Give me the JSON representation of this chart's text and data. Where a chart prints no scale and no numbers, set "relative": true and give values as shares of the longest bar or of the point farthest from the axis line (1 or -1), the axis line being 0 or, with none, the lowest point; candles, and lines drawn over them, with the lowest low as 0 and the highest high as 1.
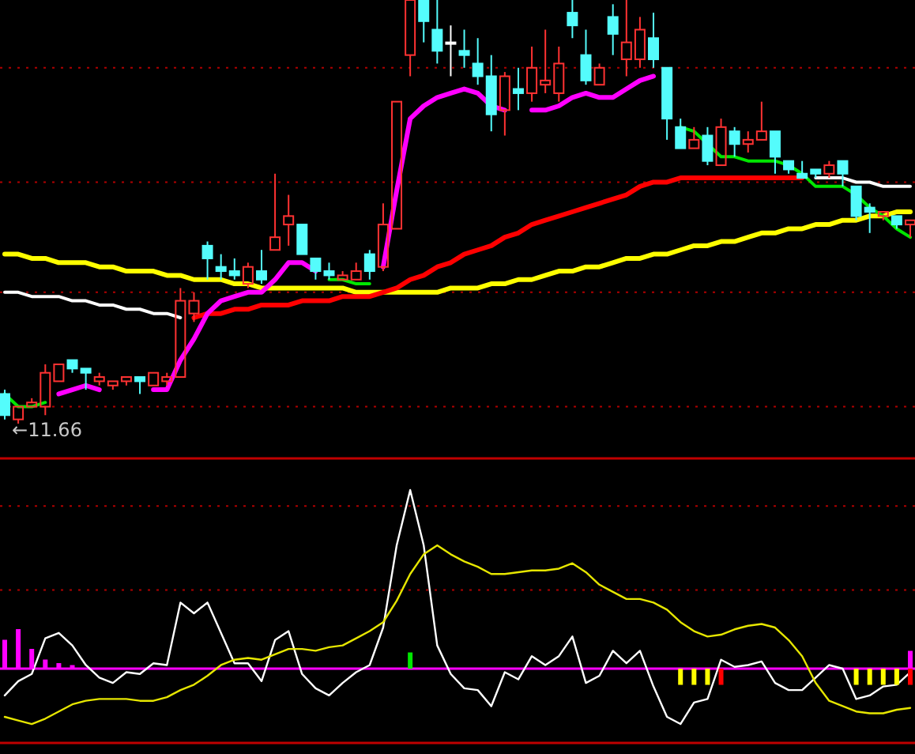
{
  "chart_data": [
    {
      "type": "candlestick",
      "relative": true,
      "ref_lines": [
        {
          "axis": "y",
          "value": 0.84,
          "color": "#b00000",
          "line_style": "dotted"
        },
        {
          "axis": "y",
          "value": 0.57,
          "color": "#b00000",
          "line_style": "dotted"
        },
        {
          "axis": "y",
          "value": 0.31,
          "color": "#b00000",
          "line_style": "dotted"
        },
        {
          "axis": "y",
          "value": 0.04,
          "color": "#b00000",
          "line_style": "dotted"
        }
      ],
      "categories": [
        null,
        null,
        null,
        null,
        null,
        null,
        null,
        null,
        null,
        null,
        null,
        null,
        null,
        null,
        null,
        null,
        null,
        null,
        null,
        null,
        null,
        null,
        null,
        null,
        null,
        null,
        null,
        null,
        null,
        null,
        null,
        null,
        null,
        null,
        null,
        null,
        null,
        null,
        null,
        null,
        null,
        null,
        null,
        null,
        null,
        null,
        null,
        null,
        null,
        null,
        null,
        null,
        null,
        null,
        null,
        null,
        null,
        null,
        null,
        null,
        null,
        null,
        null,
        null,
        null,
        null,
        null,
        null
      ],
      "ohlc": [
        [
          0.07,
          0.08,
          0.01,
          0.02
        ],
        [
          0.01,
          0.04,
          0,
          0.04
        ],
        [
          0.04,
          0.06,
          0.04,
          0.05
        ],
        [
          0.04,
          0.14,
          0.02,
          0.12
        ],
        [
          0.1,
          0.14,
          0.1,
          0.14
        ],
        [
          0.15,
          0.15,
          0.12,
          0.13
        ],
        [
          0.13,
          0.13,
          0.08,
          0.12
        ],
        [
          0.1,
          0.12,
          0.09,
          0.11
        ],
        [
          0.09,
          0.1,
          0.08,
          0.1
        ],
        [
          0.1,
          0.11,
          0.09,
          0.11
        ],
        [
          0.11,
          0.11,
          0.07,
          0.1
        ],
        [
          0.09,
          0.12,
          0.09,
          0.12
        ],
        [
          0.1,
          0.12,
          0.09,
          0.11
        ],
        [
          0.11,
          0.32,
          0.11,
          0.29
        ],
        [
          0.26,
          0.31,
          0.24,
          0.29
        ],
        [
          0.42,
          0.43,
          0.34,
          0.39
        ],
        [
          0.37,
          0.4,
          0.34,
          0.36
        ],
        [
          0.36,
          0.39,
          0.34,
          0.35
        ],
        [
          0.33,
          0.38,
          0.32,
          0.37
        ],
        [
          0.36,
          0.41,
          0.33,
          0.34
        ],
        [
          0.41,
          0.59,
          0.41,
          0.44
        ],
        [
          0.47,
          0.54,
          0.42,
          0.49
        ],
        [
          0.47,
          0.47,
          0.4,
          0.4
        ],
        [
          0.39,
          0.39,
          0.34,
          0.36
        ],
        [
          0.36,
          0.38,
          0.34,
          0.35
        ],
        [
          0.34,
          0.36,
          0.34,
          0.35
        ],
        [
          0.34,
          0.38,
          0.34,
          0.36
        ],
        [
          0.4,
          0.41,
          0.34,
          0.36
        ],
        [
          0.37,
          0.52,
          0.36,
          0.47
        ],
        [
          0.46,
          0.76,
          0.46,
          0.76
        ],
        [
          0.87,
          1,
          0.82,
          1
        ],
        [
          1,
          1,
          0.9,
          0.95
        ],
        [
          0.93,
          1,
          0.85,
          0.88
        ],
        [
          0.9,
          0.94,
          0.82,
          0.9
        ],
        [
          0.88,
          0.93,
          0.84,
          0.87
        ],
        [
          0.85,
          0.91,
          0.8,
          0.82
        ],
        [
          0.82,
          0.87,
          0.69,
          0.73
        ],
        [
          0.74,
          0.83,
          0.68,
          0.82
        ],
        [
          0.79,
          0.84,
          0.74,
          0.78
        ],
        [
          0.78,
          0.89,
          0.76,
          0.84
        ],
        [
          0.8,
          0.93,
          0.78,
          0.81
        ],
        [
          0.78,
          0.89,
          0.76,
          0.85
        ],
        [
          0.97,
          1,
          0.91,
          0.94
        ],
        [
          0.87,
          0.93,
          0.8,
          0.81
        ],
        [
          0.8,
          0.85,
          0.8,
          0.84
        ],
        [
          0.96,
          0.99,
          0.87,
          0.92
        ],
        [
          0.86,
          1,
          0.82,
          0.9
        ],
        [
          0.86,
          0.96,
          0.84,
          0.93
        ],
        [
          0.91,
          0.97,
          0.84,
          0.86
        ],
        [
          0.84,
          0.84,
          0.67,
          0.72
        ],
        [
          0.7,
          0.72,
          0.65,
          0.65
        ],
        [
          0.65,
          0.7,
          0.65,
          0.67
        ],
        [
          0.68,
          0.7,
          0.61,
          0.62
        ],
        [
          0.61,
          0.72,
          0.61,
          0.7
        ],
        [
          0.69,
          0.7,
          0.63,
          0.66
        ],
        [
          0.66,
          0.69,
          0.64,
          0.67
        ],
        [
          0.67,
          0.76,
          0.67,
          0.69
        ],
        [
          0.69,
          0.69,
          0.59,
          0.63
        ],
        [
          0.62,
          0.62,
          0.59,
          0.6
        ],
        [
          0.59,
          0.62,
          0.58,
          0.58
        ],
        [
          0.6,
          0.6,
          0.58,
          0.59
        ],
        [
          0.59,
          0.62,
          0.58,
          0.61
        ],
        [
          0.62,
          0.62,
          0.56,
          0.59
        ],
        [
          0.56,
          0.56,
          0.48,
          0.49
        ],
        [
          0.51,
          0.52,
          0.45,
          0.5
        ],
        [
          0.49,
          0.5,
          0.48,
          0.5
        ],
        [
          0.49,
          0.49,
          0.46,
          0.47
        ],
        [
          0.47,
          0.48,
          0.44,
          0.48
        ]
      ],
      "series": [
        {
          "type": "line",
          "color": "#ffffff",
          "values": [
            0.31,
            0.31,
            0.3,
            0.3,
            0.3,
            0.29,
            0.29,
            0.28,
            0.28,
            0.27,
            0.27,
            0.26,
            0.26,
            0.25,
            null,
            null,
            null,
            null,
            null,
            null,
            null,
            null,
            null,
            null,
            null,
            null,
            null,
            null,
            null,
            null,
            null,
            null,
            null,
            null,
            null,
            null,
            null,
            null,
            null,
            null,
            null,
            null,
            null,
            null,
            null,
            null,
            null,
            null,
            null,
            null,
            null,
            null,
            null,
            null,
            null,
            null,
            null,
            null,
            null,
            null,
            0.58,
            0.58,
            0.58,
            0.57,
            0.57,
            0.56,
            0.56,
            0.56
          ]
        },
        {
          "type": "line",
          "color": "#ffff00",
          "values": [
            0.4,
            0.4,
            0.39,
            0.39,
            0.38,
            0.38,
            0.38,
            0.37,
            0.37,
            0.36,
            0.36,
            0.36,
            0.35,
            0.35,
            0.34,
            0.34,
            0.34,
            0.33,
            0.33,
            0.32,
            0.32,
            0.32,
            0.32,
            0.32,
            0.32,
            0.32,
            0.31,
            0.31,
            0.31,
            0.31,
            0.31,
            0.31,
            0.31,
            0.32,
            0.32,
            0.32,
            0.33,
            0.33,
            0.34,
            0.34,
            0.35,
            0.36,
            0.36,
            0.37,
            0.37,
            0.38,
            0.39,
            0.39,
            0.4,
            0.4,
            0.41,
            0.42,
            0.42,
            0.43,
            0.43,
            0.44,
            0.45,
            0.45,
            0.46,
            0.46,
            0.47,
            0.47,
            0.48,
            0.48,
            0.49,
            0.49,
            0.5,
            0.5
          ]
        },
        {
          "type": "line",
          "color": "#ff0000",
          "values": [
            null,
            null,
            null,
            null,
            null,
            null,
            null,
            null,
            null,
            null,
            null,
            null,
            null,
            null,
            0.25,
            0.26,
            0.26,
            0.27,
            0.27,
            0.28,
            0.28,
            0.28,
            0.29,
            0.29,
            0.29,
            0.3,
            0.3,
            0.3,
            0.31,
            0.32,
            0.34,
            0.35,
            0.37,
            0.38,
            0.4,
            0.41,
            0.42,
            0.44,
            0.45,
            0.47,
            0.48,
            0.49,
            0.5,
            0.51,
            0.52,
            0.53,
            0.54,
            0.56,
            0.57,
            0.57,
            0.58,
            0.58,
            0.58,
            0.58,
            0.58,
            0.58,
            0.58,
            0.58,
            0.58,
            0.58,
            null,
            null,
            null,
            null,
            null,
            null,
            null,
            null
          ]
        },
        {
          "type": "line",
          "color": "#ff00ff",
          "values": [
            null,
            null,
            null,
            null,
            0.07,
            0.08,
            0.09,
            0.08,
            null,
            null,
            null,
            0.08,
            0.08,
            0.15,
            0.2,
            0.26,
            0.29,
            0.3,
            0.31,
            0.31,
            0.34,
            0.38,
            0.38,
            0.36,
            null,
            null,
            null,
            null,
            0.37,
            0.55,
            0.72,
            0.75,
            0.77,
            0.78,
            0.79,
            0.78,
            0.75,
            0.74,
            null,
            0.74,
            0.74,
            0.75,
            0.77,
            0.78,
            0.77,
            0.77,
            0.79,
            0.81,
            0.82,
            null,
            null,
            null,
            null,
            null,
            null,
            null,
            null,
            null,
            null,
            null,
            null,
            null,
            null,
            null,
            null,
            null,
            null,
            null
          ]
        },
        {
          "type": "line",
          "color": "#00e600",
          "values": [
            0.07,
            0.04,
            0.04,
            0.05,
            null,
            null,
            null,
            null,
            null,
            null,
            null,
            null,
            null,
            null,
            null,
            null,
            null,
            null,
            null,
            null,
            null,
            null,
            null,
            null,
            0.34,
            0.34,
            0.33,
            0.33,
            null,
            null,
            null,
            null,
            null,
            null,
            null,
            null,
            null,
            null,
            null,
            null,
            null,
            null,
            null,
            null,
            null,
            null,
            null,
            null,
            null,
            null,
            0.7,
            0.69,
            0.66,
            0.63,
            0.63,
            0.62,
            0.62,
            0.62,
            0.61,
            0.59,
            0.56,
            0.56,
            0.56,
            0.54,
            0.51,
            0.49,
            0.46,
            0.44
          ]
        }
      ],
      "annotations": [
        "←11.66"
      ]
    },
    {
      "type": "line",
      "relative": true,
      "ref_lines": [
        {
          "axis": "y",
          "value": 0.91,
          "color": "#b00000",
          "line_style": "dotted"
        },
        {
          "axis": "y",
          "value": 0.44,
          "color": "#b00000",
          "line_style": "dotted"
        },
        {
          "axis": "y",
          "value": 0,
          "color": "#ff00ff",
          "line_style": "solid"
        }
      ],
      "categories": [
        null,
        null,
        null,
        null,
        null,
        null,
        null,
        null,
        null,
        null,
        null,
        null,
        null,
        null,
        null,
        null,
        null,
        null,
        null,
        null,
        null,
        null,
        null,
        null,
        null,
        null,
        null,
        null,
        null,
        null,
        null,
        null,
        null,
        null,
        null,
        null,
        null,
        null,
        null,
        null,
        null,
        null,
        null,
        null,
        null,
        null,
        null,
        null,
        null,
        null,
        null,
        null,
        null,
        null,
        null,
        null,
        null,
        null,
        null,
        null,
        null,
        null,
        null,
        null,
        null,
        null,
        null,
        null
      ],
      "series": [
        {
          "type": "line",
          "color": "#ffffff",
          "values": [
            -0.15,
            -0.07,
            -0.03,
            0.17,
            0.2,
            0.13,
            0.02,
            -0.05,
            -0.08,
            -0.02,
            -0.03,
            0.03,
            0.02,
            0.37,
            0.31,
            0.37,
            0.2,
            0.03,
            0.03,
            -0.07,
            0.16,
            0.21,
            -0.03,
            -0.11,
            -0.15,
            -0.08,
            -0.02,
            0.02,
            0.23,
            0.69,
            1,
            0.69,
            0.13,
            -0.03,
            -0.11,
            -0.12,
            -0.21,
            -0.02,
            -0.06,
            0.07,
            0.02,
            0.07,
            0.18,
            -0.08,
            -0.04,
            0.1,
            0.03,
            0.1,
            -0.1,
            -0.27,
            -0.31,
            -0.19,
            -0.17,
            0.05,
            0.01,
            0.02,
            0.04,
            -0.08,
            -0.12,
            -0.12,
            -0.05,
            0.02,
            0,
            -0.17,
            -0.15,
            -0.1,
            -0.09,
            -0.02
          ]
        },
        {
          "type": "line",
          "color": "#e6e600",
          "values": [
            -0.27,
            -0.29,
            -0.31,
            -0.28,
            -0.24,
            -0.2,
            -0.18,
            -0.17,
            -0.17,
            -0.17,
            -0.18,
            -0.18,
            -0.16,
            -0.12,
            -0.09,
            -0.04,
            0.02,
            0.05,
            0.06,
            0.05,
            0.08,
            0.11,
            0.11,
            0.1,
            0.12,
            0.13,
            0.17,
            0.21,
            0.26,
            0.38,
            0.53,
            0.64,
            0.69,
            0.64,
            0.6,
            0.57,
            0.53,
            0.53,
            0.54,
            0.55,
            0.55,
            0.56,
            0.59,
            0.54,
            0.47,
            0.43,
            0.39,
            0.39,
            0.37,
            0.33,
            0.26,
            0.21,
            0.18,
            0.19,
            0.22,
            0.24,
            0.25,
            0.23,
            0.16,
            0.07,
            -0.08,
            -0.18,
            -0.21,
            -0.24,
            -0.25,
            -0.25,
            -0.23,
            -0.22
          ]
        }
      ]
    },
    {
      "type": "bar",
      "relative": true,
      "stacked": true,
      "categories": [
        null,
        null,
        null,
        null,
        null,
        null,
        null,
        null,
        null,
        null,
        null,
        null,
        null,
        null,
        null,
        null,
        null,
        null,
        null,
        null,
        null,
        null,
        null,
        null,
        null,
        null,
        null,
        null,
        null,
        null,
        null,
        null,
        null,
        null,
        null,
        null,
        null,
        null,
        null,
        null,
        null,
        null,
        null,
        null,
        null,
        null,
        null,
        null,
        null,
        null,
        null,
        null,
        null,
        null,
        null,
        null,
        null,
        null,
        null,
        null,
        null,
        null,
        null,
        null,
        null,
        null,
        null,
        null
      ],
      "series": [
        {
          "colors": [
            "#ff00ff",
            "#ff00ff",
            "#ff00ff",
            "#ff00ff",
            "#ff00ff",
            "#ff00ff",
            null,
            null,
            null,
            null,
            null,
            null,
            null,
            null,
            null,
            null,
            null,
            null,
            null,
            null,
            null,
            null,
            null,
            null,
            null,
            null,
            null,
            null,
            null,
            null,
            "#00e600",
            null,
            null,
            null,
            null,
            null,
            null,
            null,
            null,
            null,
            null,
            null,
            null,
            null,
            null,
            null,
            null,
            null,
            null,
            null,
            null,
            null,
            null,
            null,
            null,
            null,
            null,
            null,
            null,
            null,
            null,
            null,
            null,
            null,
            null,
            null,
            null,
            "#ff00ff"
          ],
          "values": [
            0.73,
            1,
            0.5,
            0.23,
            0.14,
            0.09,
            null,
            null,
            null,
            null,
            null,
            null,
            null,
            null,
            null,
            null,
            null,
            null,
            null,
            null,
            null,
            null,
            null,
            null,
            null,
            null,
            null,
            null,
            null,
            null,
            0.41,
            null,
            null,
            null,
            null,
            null,
            null,
            null,
            null,
            null,
            null,
            null,
            null,
            null,
            null,
            null,
            null,
            null,
            null,
            null,
            null,
            null,
            null,
            null,
            null,
            null,
            null,
            null,
            null,
            null,
            null,
            null,
            null,
            null,
            null,
            null,
            null,
            0.45
          ]
        },
        {
          "colors": [
            null,
            null,
            null,
            null,
            null,
            null,
            null,
            null,
            null,
            null,
            null,
            null,
            null,
            null,
            null,
            null,
            null,
            null,
            null,
            null,
            null,
            null,
            null,
            null,
            null,
            null,
            null,
            null,
            null,
            null,
            null,
            null,
            null,
            null,
            null,
            null,
            null,
            null,
            null,
            null,
            null,
            null,
            null,
            null,
            null,
            null,
            null,
            null,
            null,
            null,
            "#ffff00",
            "#ffff00",
            "#ffff00",
            "#ff0000",
            null,
            null,
            null,
            null,
            null,
            null,
            null,
            null,
            null,
            "#ffff00",
            "#ffff00",
            "#ffff00",
            "#ffff00",
            "#ff0000"
          ],
          "values": [
            null,
            null,
            null,
            null,
            null,
            null,
            null,
            null,
            null,
            null,
            null,
            null,
            null,
            null,
            null,
            null,
            null,
            null,
            null,
            null,
            null,
            null,
            null,
            null,
            null,
            null,
            null,
            null,
            null,
            null,
            null,
            null,
            null,
            null,
            null,
            null,
            null,
            null,
            null,
            null,
            null,
            null,
            null,
            null,
            null,
            null,
            null,
            null,
            null,
            null,
            -0.41,
            -0.41,
            -0.41,
            -0.41,
            null,
            null,
            null,
            null,
            null,
            null,
            null,
            null,
            null,
            -0.41,
            -0.41,
            -0.41,
            -0.41,
            -0.41
          ]
        }
      ]
    }
  ]
}
